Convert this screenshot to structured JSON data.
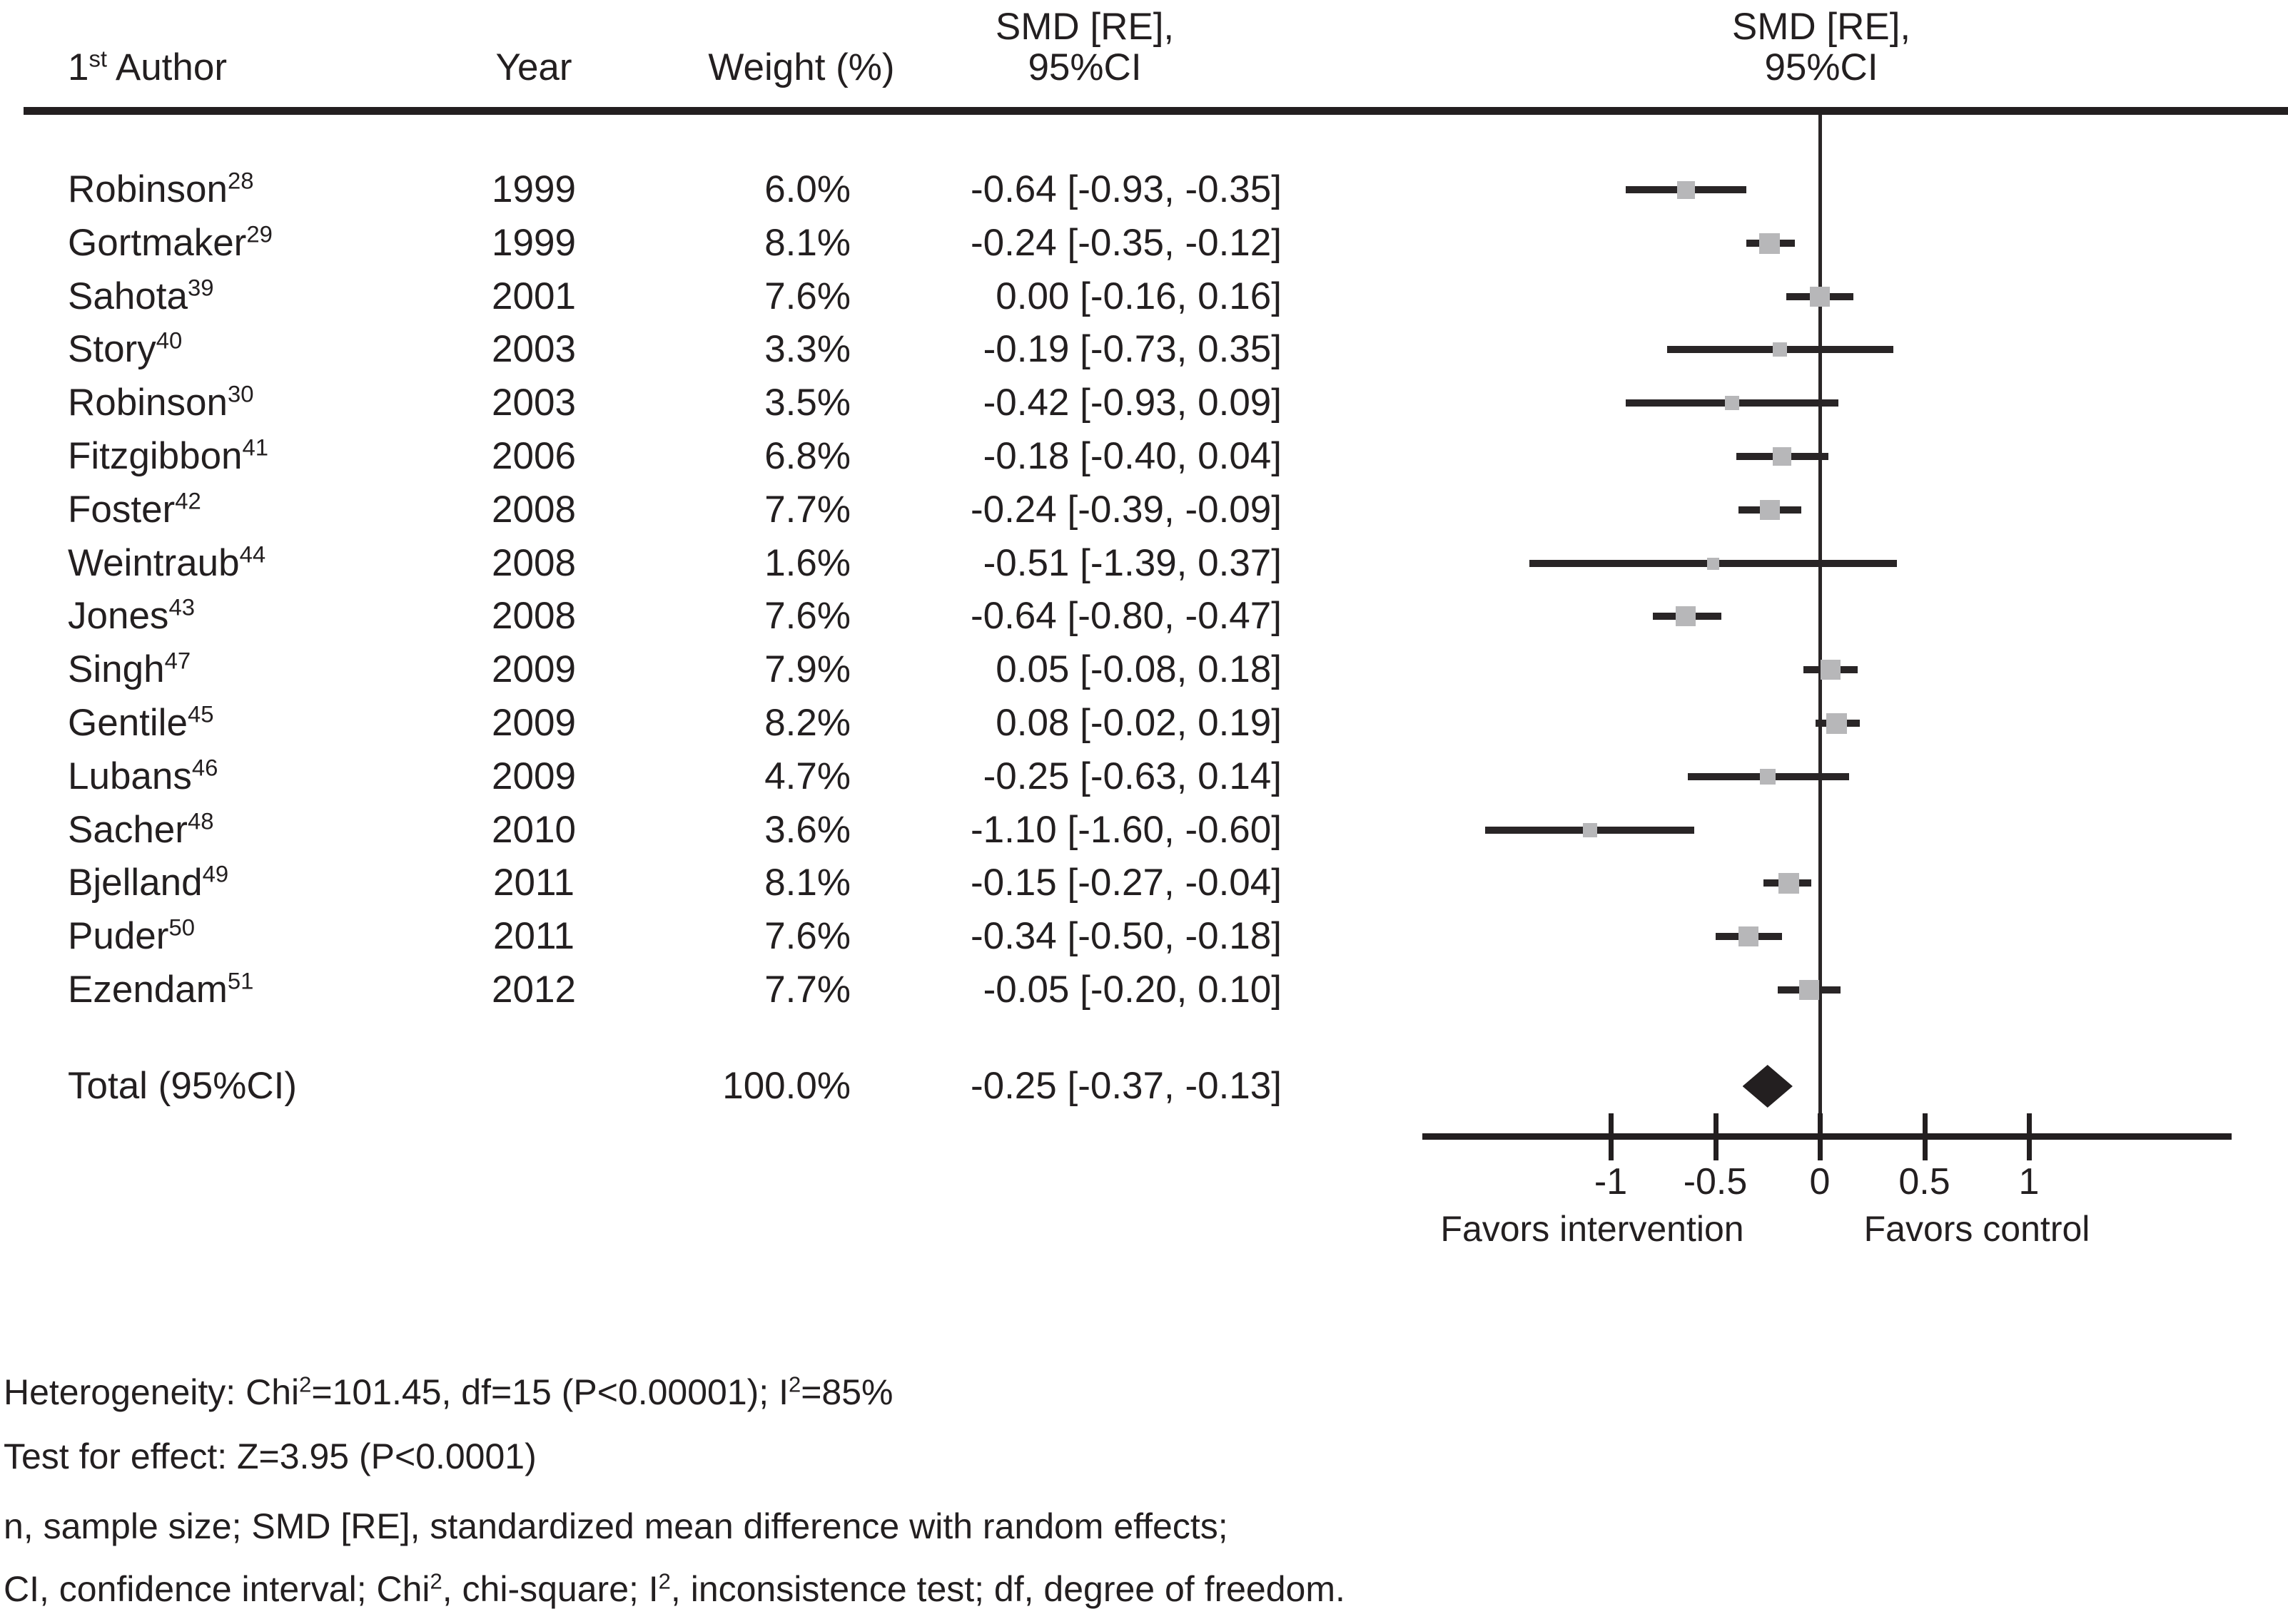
{
  "colors": {
    "ink": "#231f20",
    "marker_gray": "#b7b7b9"
  },
  "table_header": {
    "author_rich": [
      {
        "t": "1"
      },
      {
        "sup": "st"
      },
      {
        "t": " Author"
      }
    ],
    "year": "Year",
    "weight": "Weight (%)",
    "smd_line1": "SMD [RE],",
    "smd_line2": "95%CI"
  },
  "chart_data": {
    "type": "forest",
    "effect_measure": "SMD [RE], 95%CI",
    "x_tick_values": [
      -1,
      -0.5,
      0,
      0.5,
      1
    ],
    "x_tick_labels": [
      "-1",
      "-0.5",
      "0",
      "0.5",
      "1"
    ],
    "zero_line": 0,
    "xlabel_left": "Favors intervention",
    "xlabel_right": "Favors control",
    "studies": [
      {
        "author": "Robinson",
        "ref": "28",
        "year": "1999",
        "weight_pct": 6.0,
        "weight_label": "6.0%",
        "smd": -0.64,
        "ci_low": -0.93,
        "ci_high": -0.35,
        "ci_label": "-0.64 [-0.93, -0.35]"
      },
      {
        "author": "Gortmaker",
        "ref": "29",
        "year": "1999",
        "weight_pct": 8.1,
        "weight_label": "8.1%",
        "smd": -0.24,
        "ci_low": -0.35,
        "ci_high": -0.12,
        "ci_label": "-0.24 [-0.35, -0.12]"
      },
      {
        "author": "Sahota",
        "ref": "39",
        "year": "2001",
        "weight_pct": 7.6,
        "weight_label": "7.6%",
        "smd": 0.0,
        "ci_low": -0.16,
        "ci_high": 0.16,
        "ci_label": "0.00 [-0.16, 0.16]"
      },
      {
        "author": "Story",
        "ref": "40",
        "year": "2003",
        "weight_pct": 3.3,
        "weight_label": "3.3%",
        "smd": -0.19,
        "ci_low": -0.73,
        "ci_high": 0.35,
        "ci_label": "-0.19 [-0.73, 0.35]"
      },
      {
        "author": "Robinson",
        "ref": "30",
        "year": "2003",
        "weight_pct": 3.5,
        "weight_label": "3.5%",
        "smd": -0.42,
        "ci_low": -0.93,
        "ci_high": 0.09,
        "ci_label": "-0.42 [-0.93, 0.09]"
      },
      {
        "author": "Fitzgibbon",
        "ref": "41",
        "year": "2006",
        "weight_pct": 6.8,
        "weight_label": "6.8%",
        "smd": -0.18,
        "ci_low": -0.4,
        "ci_high": 0.04,
        "ci_label": "-0.18 [-0.40, 0.04]"
      },
      {
        "author": "Foster",
        "ref": "42",
        "year": "2008",
        "weight_pct": 7.7,
        "weight_label": "7.7%",
        "smd": -0.24,
        "ci_low": -0.39,
        "ci_high": -0.09,
        "ci_label": "-0.24 [-0.39, -0.09]"
      },
      {
        "author": "Weintraub",
        "ref": "44",
        "year": "2008",
        "weight_pct": 1.6,
        "weight_label": "1.6%",
        "smd": -0.51,
        "ci_low": -1.39,
        "ci_high": 0.37,
        "ci_label": "-0.51 [-1.39, 0.37]"
      },
      {
        "author": "Jones",
        "ref": "43",
        "year": "2008",
        "weight_pct": 7.6,
        "weight_label": "7.6%",
        "smd": -0.64,
        "ci_low": -0.8,
        "ci_high": -0.47,
        "ci_label": "-0.64 [-0.80, -0.47]"
      },
      {
        "author": "Singh",
        "ref": "47",
        "year": "2009",
        "weight_pct": 7.9,
        "weight_label": "7.9%",
        "smd": 0.05,
        "ci_low": -0.08,
        "ci_high": 0.18,
        "ci_label": "0.05 [-0.08, 0.18]"
      },
      {
        "author": "Gentile",
        "ref": "45",
        "year": "2009",
        "weight_pct": 8.2,
        "weight_label": "8.2%",
        "smd": 0.08,
        "ci_low": -0.02,
        "ci_high": 0.19,
        "ci_label": "0.08 [-0.02, 0.19]"
      },
      {
        "author": "Lubans",
        "ref": "46",
        "year": "2009",
        "weight_pct": 4.7,
        "weight_label": "4.7%",
        "smd": -0.25,
        "ci_low": -0.63,
        "ci_high": 0.14,
        "ci_label": "-0.25 [-0.63, 0.14]"
      },
      {
        "author": "Sacher",
        "ref": "48",
        "year": "2010",
        "weight_pct": 3.6,
        "weight_label": "3.6%",
        "smd": -1.1,
        "ci_low": -1.6,
        "ci_high": -0.6,
        "ci_label": "-1.10 [-1.60, -0.60]"
      },
      {
        "author": "Bjelland",
        "ref": "49",
        "year": "2011",
        "weight_pct": 8.1,
        "weight_label": "8.1%",
        "smd": -0.15,
        "ci_low": -0.27,
        "ci_high": -0.04,
        "ci_label": "-0.15 [-0.27, -0.04]"
      },
      {
        "author": "Puder",
        "ref": "50",
        "year": "2011",
        "weight_pct": 7.6,
        "weight_label": "7.6%",
        "smd": -0.34,
        "ci_low": -0.5,
        "ci_high": -0.18,
        "ci_label": "-0.34 [-0.50, -0.18]"
      },
      {
        "author": "Ezendam",
        "ref": "51",
        "year": "2012",
        "weight_pct": 7.7,
        "weight_label": "7.7%",
        "smd": -0.05,
        "ci_low": -0.2,
        "ci_high": 0.1,
        "ci_label": "-0.05 [-0.20, 0.10]"
      }
    ],
    "total": {
      "label": "Total (95%CI)",
      "weight_label": "100.0%",
      "smd": -0.25,
      "ci_low": -0.37,
      "ci_high": -0.13,
      "ci_label": "-0.25 [-0.37, -0.13]"
    }
  },
  "footnotes": [
    [
      {
        "t": "Heterogeneity: Chi"
      },
      {
        "sup": "2"
      },
      {
        "t": "=101.45, df=15 (P<0.00001); I"
      },
      {
        "sup": "2"
      },
      {
        "t": "=85%"
      }
    ],
    [
      {
        "t": "Test for effect: Z=3.95 (P<0.0001)"
      }
    ],
    [
      {
        "t": "n, sample size; SMD [RE], standardized  mean  difference with random effects;"
      }
    ],
    [
      {
        "t": "CI, confidence interval; Chi"
      },
      {
        "sup": "2"
      },
      {
        "t": ", chi-square; I"
      },
      {
        "sup": "2"
      },
      {
        "t": ", inconsistence test; df, degree of freedom."
      }
    ]
  ]
}
